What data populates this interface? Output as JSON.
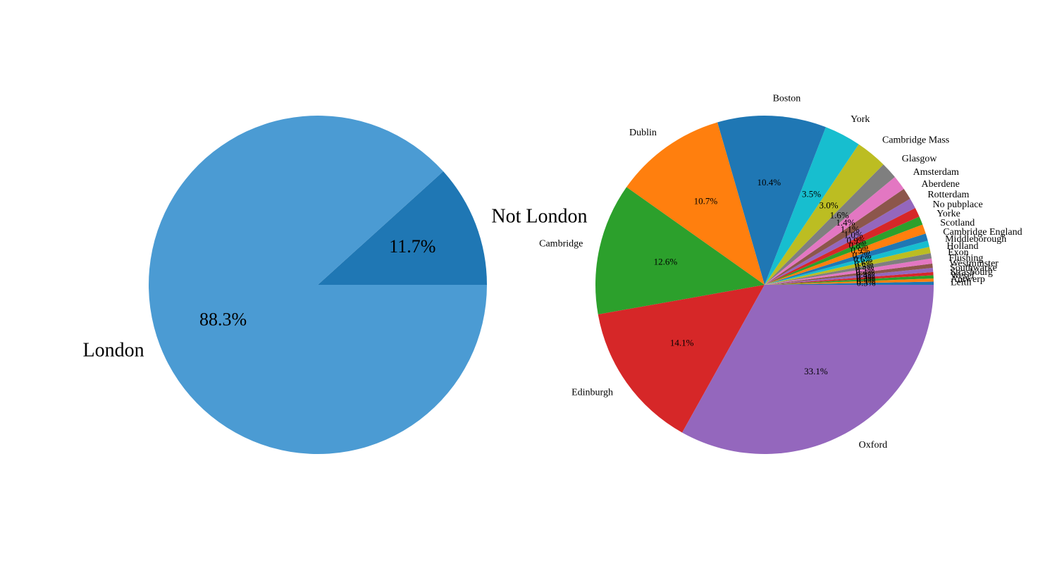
{
  "chart_data": [
    {
      "type": "pie",
      "categories": [
        "Not London",
        "London"
      ],
      "values": [
        11.7,
        88.3
      ],
      "value_labels": [
        "11.7%",
        "88.3%"
      ],
      "colors": [
        "#1f77b4",
        "#4b9bd3"
      ]
    },
    {
      "type": "pie",
      "categories": [
        "Leith",
        "Antwerp",
        "Wesel",
        "Strasbourg",
        "Southwarke",
        "Westminster",
        "Flushing",
        "Exon",
        "Holland",
        "Middleborough",
        "Cambridge England",
        "Scotland",
        "Yorke",
        "No pubplace",
        "Rotterdam",
        "Aberdene",
        "Amsterdam",
        "Glasgow",
        "Cambridge Mass",
        "York",
        "Boston",
        "Dublin",
        "Cambridge",
        "Edinburgh",
        "Oxford"
      ],
      "values": [
        0.3,
        0.3,
        0.3,
        0.3,
        0.4,
        0.4,
        0.5,
        0.5,
        0.6,
        0.6,
        0.7,
        0.9,
        0.8,
        0.9,
        1.0,
        1.1,
        1.4,
        1.6,
        3.0,
        3.5,
        10.4,
        10.7,
        12.6,
        14.1,
        33.1
      ],
      "value_labels": [
        "0.3%",
        "0.3%",
        "0.3%",
        "0.3%",
        "0.4%",
        "0.4%",
        "0.5%",
        "0.5%",
        "0.6%",
        "0.6%",
        "0.7%",
        "0.9%",
        "0.8%",
        "0.9%",
        "1.0%",
        "1.1%",
        "1.4%",
        "1.6%",
        "3.0%",
        "3.5%",
        "10.4%",
        "10.7%",
        "12.6%",
        "14.1%",
        "33.1%"
      ],
      "colors": [
        "#1f77b4",
        "#ff7f0e",
        "#2ca02c",
        "#d62728",
        "#9467bd",
        "#8c564b",
        "#e377c2",
        "#7f7f7f",
        "#bcbd22",
        "#17becf",
        "#1f77b4",
        "#ff7f0e",
        "#2ca02c",
        "#d62728",
        "#9467bd",
        "#8c564b",
        "#e377c2",
        "#7f7f7f",
        "#bcbd22",
        "#17becf",
        "#1f77b4",
        "#ff7f0e",
        "#2ca02c",
        "#d62728",
        "#9467bd"
      ]
    }
  ]
}
